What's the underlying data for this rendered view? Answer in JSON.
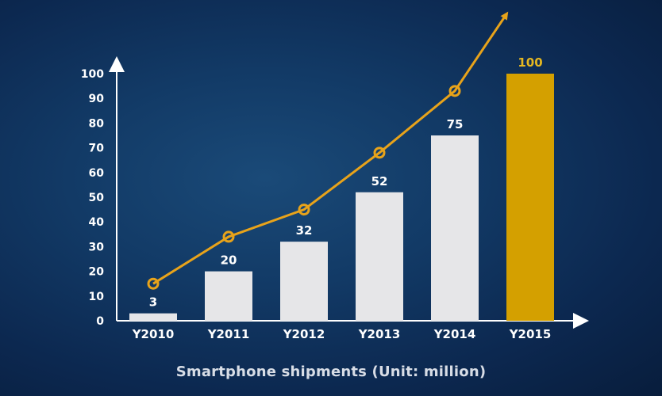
{
  "caption": "Smartphone shipments (Unit: million)",
  "colors": {
    "bar": "#e6e6e8",
    "highlight_bar": "#d4a000",
    "line": "#e8a31a",
    "axis": "#ffffff",
    "value_label": "#ffffff",
    "highlight_label": "#e6b820"
  },
  "chart_data": {
    "type": "bar",
    "categories": [
      "Y2010",
      "Y2011",
      "Y2012",
      "Y2013",
      "Y2014",
      "Y2015"
    ],
    "values": [
      3,
      20,
      32,
      52,
      75,
      100
    ],
    "value_labels": [
      "3",
      "20",
      "32",
      "52",
      "75",
      "100"
    ],
    "highlight_index": 5,
    "ylim": [
      0,
      100
    ],
    "yticks": [
      0,
      10,
      20,
      30,
      40,
      50,
      60,
      70,
      80,
      90,
      100
    ],
    "trend_line": {
      "type": "line",
      "values": [
        15,
        34,
        45,
        68,
        93
      ],
      "marker": "hollow-circle",
      "ends_with_arrow": true
    },
    "title": "",
    "xlabel": "",
    "ylabel": "",
    "grid": false,
    "legend": "none"
  }
}
